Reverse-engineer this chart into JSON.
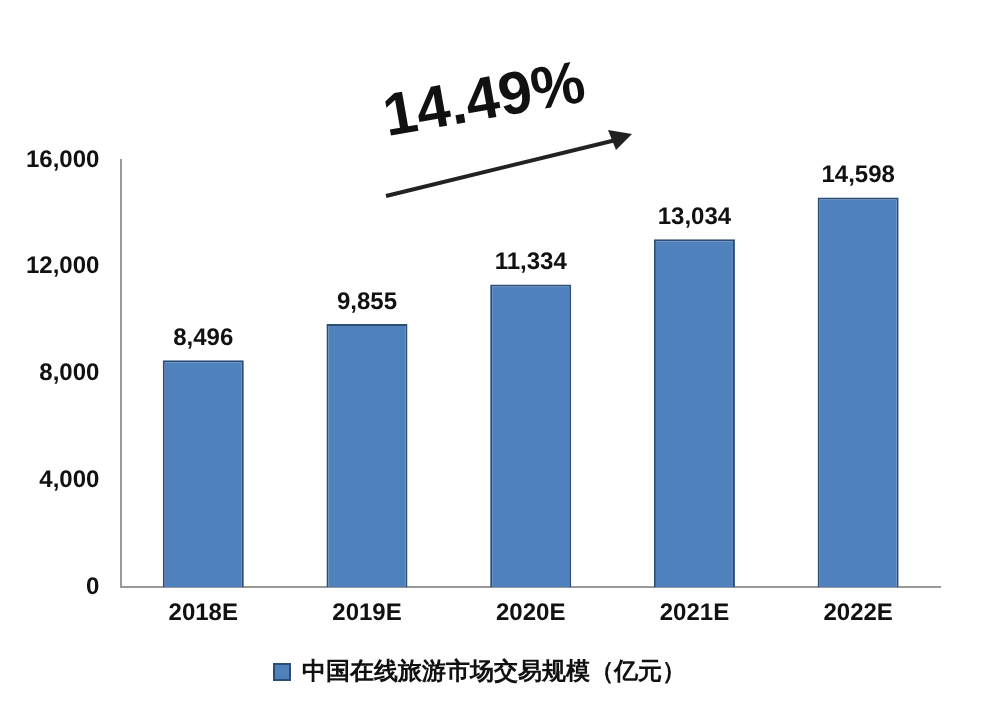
{
  "chart_data": {
    "type": "bar",
    "categories": [
      "2018E",
      "2019E",
      "2020E",
      "2021E",
      "2022E"
    ],
    "series": [
      {
        "name": "中国在线旅游市场交易规模（亿元）",
        "color": "#4f81bd",
        "values": [
          8496,
          9855,
          11334,
          13034,
          14598
        ]
      }
    ],
    "value_labels": [
      "8,496",
      "9,855",
      "11,334",
      "13,034",
      "14,598"
    ],
    "ylim": [
      0,
      16000
    ],
    "yticks": [
      0,
      {
        "value": 4000,
        "label": "4,000"
      },
      {
        "value": 8000,
        "label": "8,000"
      },
      {
        "value": 12000,
        "label": "12,000"
      },
      {
        "value": 16000,
        "label": "16,000"
      }
    ],
    "annotations": [
      "14.49%"
    ],
    "grid": false,
    "legend": "bottom"
  }
}
